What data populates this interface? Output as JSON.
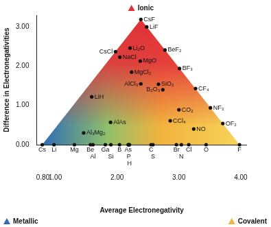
{
  "chart_data": {
    "type": "scatter",
    "xlabel": "Average Electronegativity",
    "ylabel": "Difference in Electronegativities",
    "xlim": [
      0.7,
      4.1
    ],
    "ylim": [
      0,
      3.3
    ],
    "xticks": [
      {
        "value": 0.8,
        "label": "0.80"
      },
      {
        "value": 1,
        "label": "1.00"
      },
      {
        "value": 2,
        "label": "2.00"
      },
      {
        "value": 3,
        "label": "3.00"
      },
      {
        "value": 4,
        "label": "4.00"
      }
    ],
    "yticks": [
      {
        "value": 0,
        "label": "0.00"
      },
      {
        "value": 1,
        "label": "1.00"
      },
      {
        "value": 2,
        "label": "2.00"
      },
      {
        "value": 3,
        "label": "3.00"
      }
    ],
    "grid": false,
    "color": "#111111",
    "point_labels": [
      "CsF",
      "LiF",
      "CsCl",
      "NaCl",
      "Li₂O",
      "BeF₂",
      "MgO",
      "MgCl₂",
      "BF₃",
      "AlCl₃",
      "SiO₂",
      "B₂O₃",
      "CF₄",
      "LiH",
      "NF₃",
      "CO₂",
      "AlAs",
      "NO",
      "OF₂",
      "CCl₄",
      "Al₃Mg₂"
    ],
    "x": [
      2.385,
      2.48,
      1.975,
      2.045,
      2.21,
      2.775,
      2.375,
      2.235,
      3.01,
      2.385,
      2.67,
      2.74,
      3.27,
      1.59,
      3.51,
      3.0,
      1.895,
      3.24,
      3.71,
      2.86,
      1.46
    ],
    "values": [
      3.19,
      3.0,
      2.37,
      2.23,
      2.46,
      2.41,
      2.13,
      1.85,
      1.94,
      1.55,
      1.54,
      1.4,
      1.43,
      1.22,
      0.94,
      0.89,
      0.57,
      0.4,
      0.54,
      0.61,
      0.3
    ],
    "elements": {
      "labels": [
        "Cs",
        "Li",
        "Mg",
        "Be",
        "Al",
        "Ga",
        "Si",
        "B",
        "As",
        "P",
        "H",
        "C",
        "S",
        "Br",
        "N",
        "Cl",
        "O",
        "F"
      ],
      "x": [
        0.79,
        0.98,
        1.31,
        1.57,
        1.61,
        1.81,
        1.9,
        2.04,
        2.18,
        2.19,
        2.2,
        2.55,
        2.58,
        2.96,
        3.04,
        3.16,
        3.44,
        3.98
      ]
    },
    "annotations": [
      {
        "text": "Ionic",
        "color": "#e2303a"
      },
      {
        "text": "Metallic",
        "color": "#2e6db5"
      },
      {
        "text": "Covalent",
        "color": "#f2b33d"
      }
    ]
  }
}
